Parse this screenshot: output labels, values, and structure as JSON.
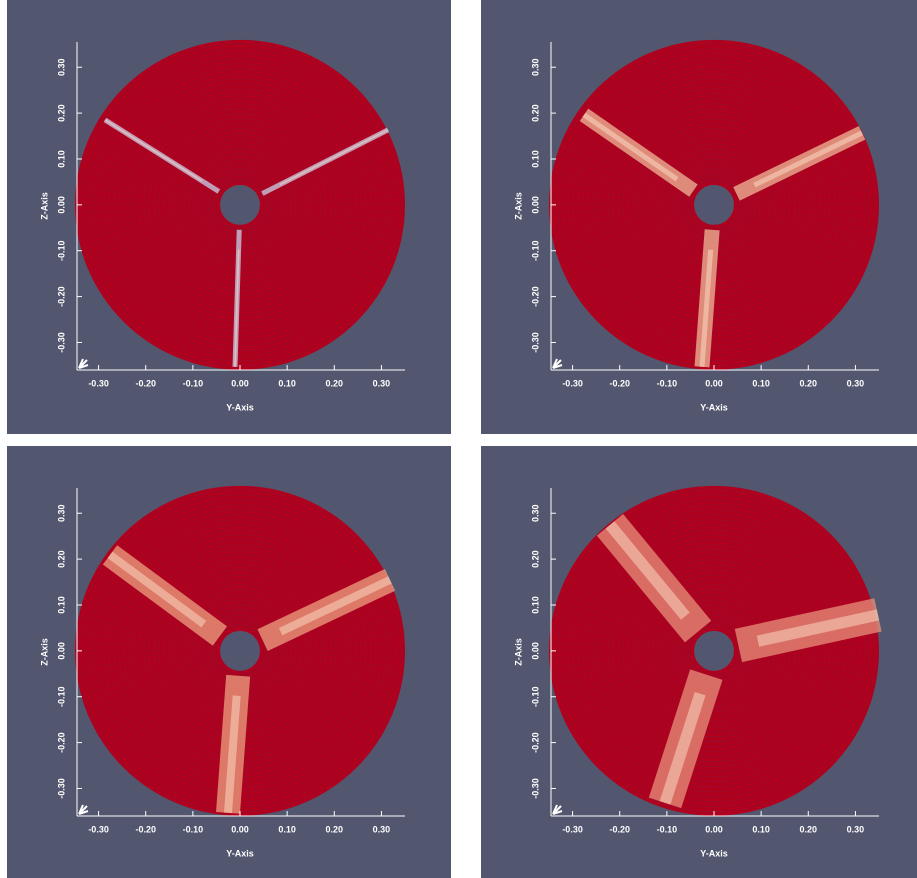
{
  "chart_data": [
    {
      "type": "disk",
      "xlabel": "Y-Axis",
      "ylabel": "Z-Axis",
      "xlim": [
        -0.35,
        0.35
      ],
      "ylim": [
        -0.36,
        0.355
      ],
      "xticks": [
        {
          "value": -0.3,
          "label": "-0.30"
        },
        {
          "value": -0.2,
          "label": "-0.20"
        },
        {
          "value": -0.1,
          "label": "-0.10"
        },
        {
          "value": 0,
          "label": "0.00"
        },
        {
          "value": 0.1,
          "label": "0.10"
        },
        {
          "value": 0.2,
          "label": "0.20"
        },
        {
          "value": 0.3,
          "label": "0.30"
        }
      ],
      "yticks": [
        {
          "value": -0.3,
          "label": "-0.30"
        },
        {
          "value": -0.2,
          "label": "-0.20"
        },
        {
          "value": -0.1,
          "label": "-0.10"
        },
        {
          "value": 0,
          "label": "0.00"
        },
        {
          "value": 0.1,
          "label": "0.10"
        },
        {
          "value": 0.2,
          "label": "0.20"
        },
        {
          "value": 0.3,
          "label": "0.30"
        }
      ]
    },
    {
      "type": "disk",
      "xlabel": "Y-Axis",
      "ylabel": "Z-Axis",
      "xlim": [
        -0.35,
        0.35
      ],
      "ylim": [
        -0.36,
        0.355
      ],
      "xticks": [
        {
          "value": -0.3,
          "label": "-0.30"
        },
        {
          "value": -0.2,
          "label": "-0.20"
        },
        {
          "value": -0.1,
          "label": "-0.10"
        },
        {
          "value": 0,
          "label": "0.00"
        },
        {
          "value": 0.1,
          "label": "0.10"
        },
        {
          "value": 0.2,
          "label": "0.20"
        },
        {
          "value": 0.3,
          "label": "0.30"
        }
      ],
      "yticks": [
        {
          "value": -0.3,
          "label": "-0.30"
        },
        {
          "value": -0.2,
          "label": "-0.20"
        },
        {
          "value": -0.1,
          "label": "-0.10"
        },
        {
          "value": 0,
          "label": "0.00"
        },
        {
          "value": 0.1,
          "label": "0.10"
        },
        {
          "value": 0.2,
          "label": "0.20"
        },
        {
          "value": 0.3,
          "label": "0.30"
        }
      ]
    },
    {
      "type": "disk",
      "xlabel": "Y-Axis",
      "ylabel": "Z-Axis",
      "xlim": [
        -0.35,
        0.35
      ],
      "ylim": [
        -0.36,
        0.355
      ],
      "xticks": [
        {
          "value": -0.3,
          "label": "-0.30"
        },
        {
          "value": -0.2,
          "label": "-0.20"
        },
        {
          "value": -0.1,
          "label": "-0.10"
        },
        {
          "value": 0,
          "label": "0.00"
        },
        {
          "value": 0.1,
          "label": "0.10"
        },
        {
          "value": 0.2,
          "label": "0.20"
        },
        {
          "value": 0.3,
          "label": "0.30"
        }
      ],
      "yticks": [
        {
          "value": -0.3,
          "label": "-0.30"
        },
        {
          "value": -0.2,
          "label": "-0.20"
        },
        {
          "value": -0.1,
          "label": "-0.10"
        },
        {
          "value": 0,
          "label": "0.00"
        },
        {
          "value": 0.1,
          "label": "0.10"
        },
        {
          "value": 0.2,
          "label": "0.20"
        },
        {
          "value": 0.3,
          "label": "0.30"
        }
      ]
    },
    {
      "type": "disk",
      "xlabel": "Y-Axis",
      "ylabel": "Z-Axis",
      "xlim": [
        -0.35,
        0.35
      ],
      "ylim": [
        -0.36,
        0.355
      ],
      "xticks": [
        {
          "value": -0.3,
          "label": "-0.30"
        },
        {
          "value": -0.2,
          "label": "-0.20"
        },
        {
          "value": -0.1,
          "label": "-0.10"
        },
        {
          "value": 0,
          "label": "0.00"
        },
        {
          "value": 0.1,
          "label": "0.10"
        },
        {
          "value": 0.2,
          "label": "0.20"
        },
        {
          "value": 0.3,
          "label": "0.30"
        }
      ],
      "yticks": [
        {
          "value": -0.3,
          "label": "-0.30"
        },
        {
          "value": -0.2,
          "label": "-0.20"
        },
        {
          "value": -0.1,
          "label": "-0.10"
        },
        {
          "value": 0,
          "label": "0.00"
        },
        {
          "value": 0.1,
          "label": "0.10"
        },
        {
          "value": 0.2,
          "label": "0.20"
        },
        {
          "value": 0.3,
          "label": "0.30"
        }
      ]
    }
  ]
}
